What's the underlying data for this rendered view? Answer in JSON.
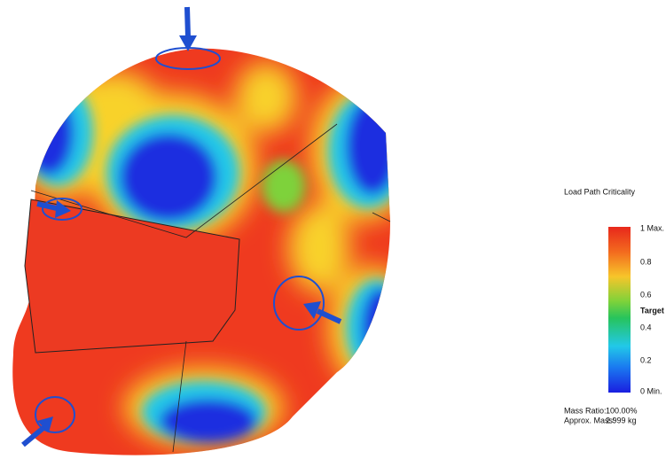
{
  "legend": {
    "title": "Load Path Criticality",
    "labels": [
      "1 Max.",
      "0.8",
      "0.6",
      "Target",
      "0.4",
      "0.2",
      "0 Min."
    ]
  },
  "stats": [
    [
      "Mass Ratio:",
      "100.00%"
    ],
    [
      "Approx. Mass:",
      "2.999 kg"
    ]
  ]
}
